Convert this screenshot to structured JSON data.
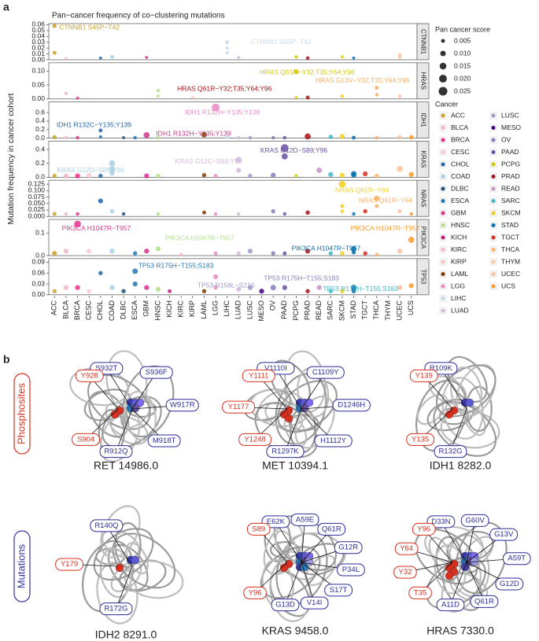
{
  "panel_a": {
    "label": "a",
    "title": "Pan−cancer frequency of co−clustering mutations",
    "ylabel": "Mutation frequency in cancer cohort",
    "categories": [
      "ACC",
      "BLCA",
      "BRCA",
      "CESC",
      "CHOL",
      "COAD",
      "DLBC",
      "ESCA",
      "GBM",
      "HNSC",
      "KICH",
      "KIRC",
      "KIRP",
      "LAML",
      "LGG",
      "LIHC",
      "LUAD",
      "LUSC",
      "MESO",
      "OV",
      "PAAD",
      "PCPG",
      "PRAD",
      "READ",
      "SARC",
      "SKCM",
      "STAD",
      "TGCT",
      "THCA",
      "THYM",
      "UCEC",
      "UCS"
    ],
    "size_legend": {
      "title": "Pan cancer score",
      "values": [
        0.005,
        {
          "value": 0.01,
          "label": "0.010"
        },
        0.015,
        {
          "value": 0.02,
          "label": "0.020"
        },
        0.025
      ]
    },
    "cancer_legend": {
      "title": "Cancer",
      "names": [
        "ACC",
        "BLCA",
        "BRCA",
        "CESC",
        "CHOL",
        "COAD",
        "DLBC",
        "ESCA",
        "GBM",
        "HNSC",
        "KICH",
        "KIRC",
        "KIRP",
        "LAML",
        "LGG",
        "LIHC",
        "LUAD",
        "LUSC",
        "MESO",
        "OV",
        "PAAD",
        "PCPG",
        "PRAD",
        "READ",
        "SARC",
        "SKCM",
        "STAD",
        "TGCT",
        "THCA",
        "THYM",
        "UCEC",
        "UCS"
      ],
      "colors": [
        "#c9a227",
        "#f4b6c2",
        "#e6308a",
        "#f7c6d0",
        "#2166ac",
        "#a6cee3",
        "#1f4e79",
        "#1f78b4",
        "#d6338c",
        "#b2df8a",
        "#c51b7d",
        "#fbb4c4",
        "#fcc5c0",
        "#7f3b08",
        "#e78ac3",
        "#c6dbef",
        "#d4b9da",
        "#9e9ac8",
        "#3f007d",
        "#807dba",
        "#6a51a3",
        "#d9c800",
        "#a50f15",
        "#c994c7",
        "#41b6c4",
        "#f2cf1d",
        "#0570b0",
        "#d7301f",
        "#fdae61",
        "#fdd0a2",
        "#fdbf9b",
        "#fe9929"
      ]
    }
  },
  "chart_data": [
    {
      "type": "scatter",
      "facet": "CTNNB1",
      "ylim": [
        0,
        0.062
      ],
      "yticks": [
        {
          "value": 0,
          "label": "0.00"
        },
        {
          "value": 0.01,
          "label": "0.01"
        },
        {
          "value": 0.02,
          "label": "0.02"
        },
        {
          "value": 0.03,
          "label": "0.03"
        },
        {
          "value": 0.04,
          "label": "0.04"
        },
        {
          "value": 0.05,
          "label": "0.05"
        },
        {
          "value": 0.06,
          "label": "0.06"
        }
      ],
      "points": {
        "x": [
          "ACC",
          "ACC",
          "BLCA",
          "COAD",
          "CHOL",
          "GBM",
          "LIHC",
          "LIHC",
          "LIHC",
          "LUAD",
          "PCPG",
          "PRAD",
          "SKCM",
          "STAD",
          "UCEC",
          "UCEC"
        ],
        "y": [
          0.058,
          0.012,
          0.002,
          0.005,
          0.003,
          0.004,
          0.03,
          0.02,
          0.012,
          0.004,
          0.005,
          0.003,
          0.005,
          0.003,
          0.008,
          0.004
        ],
        "size": [
          0.006,
          0.005,
          0.003,
          0.005,
          0.003,
          0.003,
          0.005,
          0.004,
          0.004,
          0.003,
          0.004,
          0.004,
          0.004,
          0.003,
          0.004,
          0.003
        ]
      },
      "annotations": [
        {
          "text": "CTNNB1 S45P−T42",
          "x": "ACC",
          "y": 0.055
        },
        {
          "text": "CTNNB1 S45P−T42",
          "x": "LIHC",
          "y": 0.03
        }
      ]
    },
    {
      "type": "scatter",
      "facet": "HRAS",
      "ylim": [
        0,
        0.13
      ],
      "yticks": [
        {
          "value": 0,
          "label": "0.00"
        },
        {
          "value": 0.05,
          "label": "0.05"
        },
        {
          "value": 0.1,
          "label": "0.10"
        }
      ],
      "points": {
        "x": [
          "BLCA",
          "HNSC",
          "HNSC",
          "PCPG",
          "PCPG",
          "PRAD",
          "SKCM",
          "THCA",
          "THCA",
          "UCEC",
          "KIRP",
          "BRCA"
        ],
        "y": [
          0.02,
          0.03,
          0.01,
          0.098,
          0.005,
          0.005,
          0.01,
          0.04,
          0.015,
          0.01,
          0.005,
          0.003
        ],
        "size": [
          0.004,
          0.004,
          0.003,
          0.008,
          0.003,
          0.005,
          0.004,
          0.005,
          0.004,
          0.004,
          0.003,
          0.003
        ]
      },
      "annotations": [
        {
          "text": "HRAS Q61R−Y32;T35;Y64;Y96",
          "x": "PCPG",
          "y": 0.095
        },
        {
          "text": "HRAS Q61R−Y32;T35;Y64;Y96",
          "x": "PRAD",
          "y": 0.035
        },
        {
          "text": "HRAS G13V−Y32;T35;Y64;Y96",
          "x": "THCA",
          "y": 0.065
        }
      ]
    },
    {
      "type": "scatter",
      "facet": "IDH1",
      "ylim": [
        0,
        0.85
      ],
      "yticks": [
        {
          "value": 0,
          "label": "0.0"
        },
        {
          "value": 0.2,
          "label": "0.2"
        },
        {
          "value": 0.4,
          "label": "0.4"
        },
        {
          "value": 0.6,
          "label": "0.6"
        }
      ],
      "points": {
        "x": [
          "ACC",
          "BLCA",
          "BRCA",
          "CHOL",
          "CHOL",
          "DLBC",
          "ESCA",
          "GBM",
          "HNSC",
          "LAML",
          "LGG",
          "LIHC",
          "LUAD",
          "LUSC",
          "OV",
          "PAAD",
          "PRAD",
          "SARC",
          "SKCM",
          "STAD",
          "UCEC",
          "UCS",
          "THCA"
        ],
        "y": [
          0.02,
          0.01,
          0.01,
          0.18,
          0.03,
          0.01,
          0.01,
          0.07,
          0.01,
          0.08,
          0.72,
          0.02,
          0.01,
          0.01,
          0.01,
          0.01,
          0.04,
          0.03,
          0.04,
          0.01,
          0.02,
          0.02,
          0.01
        ],
        "size": [
          0.006,
          0.004,
          0.004,
          0.005,
          0.003,
          0.003,
          0.004,
          0.012,
          0.004,
          0.01,
          0.02,
          0.005,
          0.004,
          0.004,
          0.004,
          0.004,
          0.012,
          0.006,
          0.008,
          0.005,
          0.006,
          0.006,
          0.004
        ]
      },
      "annotations": [
        {
          "text": "IDH1 R132H−Y135;Y139",
          "x": "LGG",
          "y": 0.6
        },
        {
          "text": "IDH1 R132C−Y135;Y139",
          "x": "CHOL",
          "y": 0.3
        },
        {
          "text": "IDH1 R132H−Y135;Y139",
          "x": "GBM",
          "y": 0.1
        }
      ]
    },
    {
      "type": "scatter",
      "facet": "KRAS",
      "ylim": [
        0,
        0.52
      ],
      "yticks": [
        {
          "value": 0,
          "label": "0.0"
        },
        {
          "value": 0.2,
          "label": "0.2"
        },
        {
          "value": 0.4,
          "label": "0.4"
        }
      ],
      "points": {
        "x": [
          "ACC",
          "BLCA",
          "BRCA",
          "CESC",
          "CHOL",
          "COAD",
          "COAD",
          "COAD",
          "GBM",
          "HNSC",
          "LAML",
          "LGG",
          "LUAD",
          "LUAD",
          "LUSC",
          "OV",
          "PAAD",
          "PAAD",
          "PCPG",
          "READ",
          "SARC",
          "SKCM",
          "STAD",
          "STAD",
          "TGCT",
          "THCA",
          "UCEC",
          "UCS"
        ],
        "y": [
          0.02,
          0.02,
          0.02,
          0.03,
          0.02,
          0.2,
          0.12,
          0.06,
          0.02,
          0.02,
          0.03,
          0.02,
          0.25,
          0.1,
          0.02,
          0.03,
          0.42,
          0.3,
          0.02,
          0.1,
          0.04,
          0.03,
          0.05,
          0.03,
          0.05,
          0.02,
          0.12,
          0.04
        ],
        "size": [
          0.006,
          0.008,
          0.008,
          0.008,
          0.006,
          0.012,
          0.01,
          0.008,
          0.008,
          0.006,
          0.006,
          0.005,
          0.012,
          0.008,
          0.006,
          0.008,
          0.02,
          0.012,
          0.004,
          0.01,
          0.008,
          0.008,
          0.01,
          0.008,
          0.008,
          0.006,
          0.012,
          0.008
        ]
      },
      "annotations": [
        {
          "text": "KRAS G12D−S89;Y96",
          "x": "PAAD",
          "y": 0.38
        },
        {
          "text": "KRAS G12C−S89;Y96",
          "x": "LUAD",
          "y": 0.22
        },
        {
          "text": "KRAS G12D−S89;Y96",
          "x": "COAD",
          "y": 0.1
        }
      ]
    },
    {
      "type": "scatter",
      "facet": "NRAS",
      "ylim": [
        0,
        0.14
      ],
      "yticks": [
        {
          "value": 0,
          "label": "0.000"
        },
        {
          "value": 0.025,
          "label": "0.025"
        },
        {
          "value": 0.05,
          "label": "0.050"
        },
        {
          "value": 0.075,
          "label": "0.075"
        },
        {
          "value": 0.1,
          "label": "0.100"
        },
        {
          "value": 0.125,
          "label": "0.125"
        }
      ],
      "points": {
        "x": [
          "ACC",
          "BLCA",
          "BRCA",
          "CHOL",
          "COAD",
          "DLBC",
          "HNSC",
          "LAML",
          "LGG",
          "LUAD",
          "OV",
          "PAAD",
          "PRAD",
          "SKCM",
          "SKCM",
          "SKCM",
          "STAD",
          "TGCT",
          "THCA",
          "THCA",
          "UCEC",
          "UCS"
        ],
        "y": [
          0.01,
          0.01,
          0.01,
          0.06,
          0.02,
          0.01,
          0.01,
          0.015,
          0.01,
          0.01,
          0.02,
          0.01,
          0.015,
          0.125,
          0.04,
          0.02,
          0.01,
          0.02,
          0.07,
          0.04,
          0.02,
          0.01
        ],
        "size": [
          0.005,
          0.004,
          0.004,
          0.008,
          0.006,
          0.004,
          0.004,
          0.005,
          0.004,
          0.004,
          0.006,
          0.004,
          0.006,
          0.015,
          0.005,
          0.004,
          0.004,
          0.006,
          0.01,
          0.005,
          0.005,
          0.004
        ]
      },
      "annotations": [
        {
          "text": "NRAS Q61R−Y64",
          "x": "SKCM",
          "y": 0.1
        },
        {
          "text": "NRAS Q61R−Y64",
          "x": "THCA",
          "y": 0.06
        }
      ]
    },
    {
      "type": "scatter",
      "facet": "PIK3CA",
      "ylim": [
        0,
        0.16
      ],
      "yticks": [
        {
          "value": 0,
          "label": "0.0"
        },
        {
          "value": 0.1,
          "label": "0.1"
        }
      ],
      "points": {
        "x": [
          "ACC",
          "BLCA",
          "BRCA",
          "CESC",
          "COAD",
          "ESCA",
          "GBM",
          "HNSC",
          "KIRC",
          "LGG",
          "LUAD",
          "LUSC",
          "OV",
          "PAAD",
          "PRAD",
          "SARC",
          "SKCM",
          "STAD",
          "STAD",
          "TGCT",
          "THCA",
          "UCEC",
          "UCS"
        ],
        "y": [
          0.01,
          0.02,
          0.14,
          0.02,
          0.02,
          0.01,
          0.02,
          0.03,
          0.005,
          0.01,
          0.01,
          0.02,
          0.01,
          0.01,
          0.02,
          0.01,
          0.01,
          0.03,
          0.015,
          0.01,
          0.005,
          0.02,
          0.07
        ],
        "size": [
          0.008,
          0.008,
          0.015,
          0.008,
          0.008,
          0.006,
          0.008,
          0.008,
          0.004,
          0.005,
          0.006,
          0.008,
          0.006,
          0.005,
          0.008,
          0.006,
          0.006,
          0.01,
          0.006,
          0.006,
          0.004,
          0.008,
          0.012
        ]
      },
      "annotations": [
        {
          "text": "PIK3CA H1047R−T957",
          "x": "BRCA",
          "y": 0.12
        },
        {
          "text": "PIK3CA H1047R−T957",
          "x": "HNSC",
          "y": 0.075
        },
        {
          "text": "PIK3CA H1047R−T957",
          "x": "STAD",
          "y": 0.03
        },
        {
          "text": "PIK3CA H1047R−T957",
          "x": "UCS",
          "y": 0.12
        }
      ]
    },
    {
      "type": "scatter",
      "facet": "TP53",
      "ylim": [
        0,
        0.1
      ],
      "yticks": [
        {
          "value": 0,
          "label": "0.00"
        },
        {
          "value": 0.03,
          "label": "0.03"
        },
        {
          "value": 0.06,
          "label": "0.06"
        },
        {
          "value": 0.09,
          "label": "0.09"
        }
      ],
      "points": {
        "x": [
          "ACC",
          "BLCA",
          "BRCA",
          "CESC",
          "CHOL",
          "COAD",
          "DLBC",
          "ESCA",
          "ESCA",
          "GBM",
          "HNSC",
          "KICH",
          "LAML",
          "LGG",
          "LGG",
          "LUAD",
          "LUSC",
          "MESO",
          "OV",
          "PAAD",
          "PRAD",
          "READ",
          "SARC",
          "SKCM",
          "STAD",
          "STAD",
          "UCEC",
          "UCS"
        ],
        "y": [
          0.01,
          0.02,
          0.02,
          0.01,
          0.06,
          0.02,
          0.01,
          0.065,
          0.03,
          0.02,
          0.015,
          0.01,
          0.01,
          0.05,
          0.02,
          0.015,
          0.02,
          0.01,
          0.02,
          0.02,
          0.01,
          0.02,
          0.01,
          0.01,
          0.02,
          0.01,
          0.02,
          0.025
        ],
        "size": [
          0.006,
          0.008,
          0.008,
          0.006,
          0.006,
          0.008,
          0.006,
          0.01,
          0.008,
          0.008,
          0.008,
          0.005,
          0.006,
          0.008,
          0.006,
          0.008,
          0.008,
          0.008,
          0.01,
          0.008,
          0.006,
          0.008,
          0.006,
          0.006,
          0.01,
          0.006,
          0.008,
          0.008
        ]
      },
      "annotations": [
        {
          "text": "TP53 R175H−T155;S183",
          "x": "ESCA",
          "y": 0.08
        },
        {
          "text": "TP53 R175H−T155;S183",
          "x": "OV",
          "y": 0.045
        },
        {
          "text": "TP53 R175H−T155;S183",
          "x": "SARC",
          "y": 0.015
        },
        {
          "text": "TP53 R158L−S216",
          "x": "LUSC",
          "y": 0.025
        }
      ]
    }
  ],
  "panel_b": {
    "label": "b",
    "row_labels": [
      "Phosphosites",
      "Mutations"
    ],
    "structures": [
      {
        "name": "RET 14986.0",
        "phosphosites": [
          "S904",
          "Y928"
        ],
        "mutations": [
          "S932T",
          "S936F",
          "W917R",
          "M918T",
          "R912Q"
        ]
      },
      {
        "name": "MET 10394.1",
        "phosphosites": [
          "Y1248",
          "Y1177",
          "Y1111"
        ],
        "mutations": [
          "V1110I",
          "C1109Y",
          "D1246H",
          "H1112Y",
          "R1297K"
        ]
      },
      {
        "name": "IDH1 8282.0",
        "phosphosites": [
          "Y135",
          "Y139"
        ],
        "mutations": [
          "R109K",
          "R132G"
        ]
      },
      {
        "name": "IDH2 8291.0",
        "phosphosites": [
          "Y179"
        ],
        "mutations": [
          "R140Q",
          "R172G"
        ]
      },
      {
        "name": "KRAS 9458.0",
        "phosphosites": [
          "Y96",
          "S89"
        ],
        "mutations": [
          "E62K",
          "A59E",
          "Q61R",
          "G12R",
          "P34L",
          "S17T",
          "V14I",
          "G13D"
        ]
      },
      {
        "name": "HRAS 7330.0",
        "phosphosites": [
          "T35",
          "Y32",
          "Y64",
          "Y96"
        ],
        "mutations": [
          "D33N",
          "G60V",
          "G13V",
          "A59T",
          "G12D",
          "Q61R",
          "A11D"
        ]
      }
    ]
  }
}
